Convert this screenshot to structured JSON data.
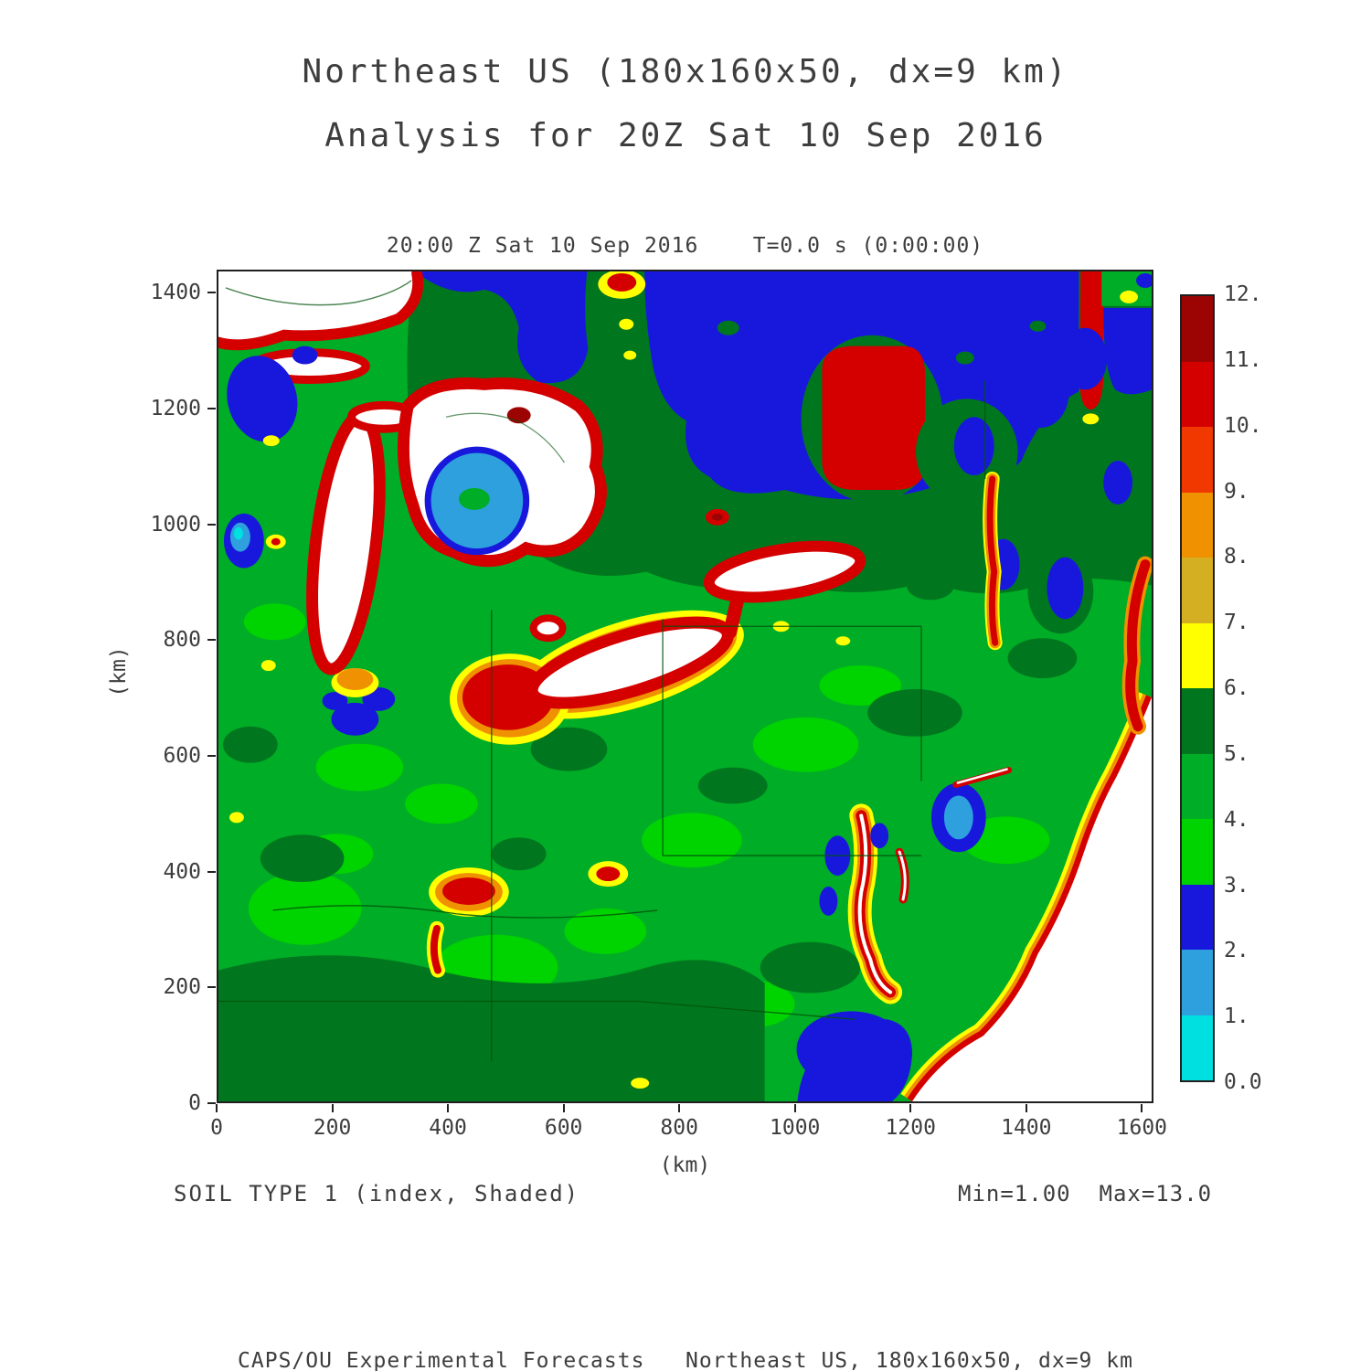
{
  "header": {
    "title_line1": "Northeast US (180x160x50, dx=9 km)",
    "title_line2": "Analysis for 20Z Sat 10 Sep 2016"
  },
  "plot": {
    "title": "20:00 Z Sat 10 Sep 2016    T=0.0 s (0:00:00)",
    "x_axis": {
      "label": "(km)",
      "ticks": [
        0,
        200,
        400,
        600,
        800,
        1000,
        1200,
        1400,
        1600
      ],
      "range": [
        0,
        1620
      ]
    },
    "y_axis": {
      "label": "(km)",
      "ticks": [
        0,
        200,
        400,
        600,
        800,
        1000,
        1200,
        1400
      ],
      "range": [
        0,
        1440
      ]
    }
  },
  "colorbar": {
    "labels": [
      "0.0",
      "1.",
      "2.",
      "3.",
      "4.",
      "5.",
      "6.",
      "7.",
      "8.",
      "9.",
      "10.",
      "11.",
      "12."
    ],
    "colors": [
      "#00e0e0",
      "#2da0dd",
      "#1818dd",
      "#00d400",
      "#00ad26",
      "#00771e",
      "#ffff00",
      "#d4af22",
      "#ef9100",
      "#f03800",
      "#d40000",
      "#9c0404"
    ]
  },
  "footer": {
    "field_label": "SOIL TYPE 1 (index, Shaded)",
    "minmax": "Min=1.00  Max=13.0",
    "credit": "CAPS/OU Experimental Forecasts   Northeast US, 180x160x50, dx=9 km"
  },
  "chart_data": {
    "type": "heatmap",
    "field": "SOIL TYPE 1 (index, Shaded)",
    "region": "Northeast US",
    "grid": "180x160x50",
    "dx": "9 km",
    "valid_time": "20:00 Z Sat 10 Sep 2016",
    "forecast_time": "T=0.0 s (0:00:00)",
    "min": 1.0,
    "max": 13.0,
    "xlabel": "(km)",
    "ylabel": "(km)",
    "xlim": [
      0,
      1620
    ],
    "ylim": [
      0,
      1440
    ],
    "levels": [
      0,
      1,
      2,
      3,
      4,
      5,
      6,
      7,
      8,
      9,
      10,
      11,
      12
    ],
    "no_data_color": "#ffffff",
    "boundary_line_color": "#00520a",
    "notable_features": [
      "Dominant land value is index 4 (green) with index 5 (dark green) patches in Ontario, the Appalachians and Tennessee/Kentucky",
      "Large blue region (index 2-3) across southern Canada along the top of the domain",
      "Bright red block (index 10-11) in Ontario near x=1050-1230 km, y=1060-1310 km",
      "Great Lakes (Superior, Michigan, Huron, Erie, Ontario) shown white (no data) ringed by red index ~10, with orange/yellow fringes around Lake Erie",
      "Light blue (index 1-2) patch inside Lake Huron near x=450 km, y=1040 km",
      "Atlantic ocean white with yellow-orange-red band along the coastline; Chesapeake and Delaware bays outlined in red",
      "Scattered blue patches over New England, New York, New Jersey and Indiana",
      "Small red/yellow urban spots over Kentucky, Ohio and the top edge of the domain"
    ]
  }
}
